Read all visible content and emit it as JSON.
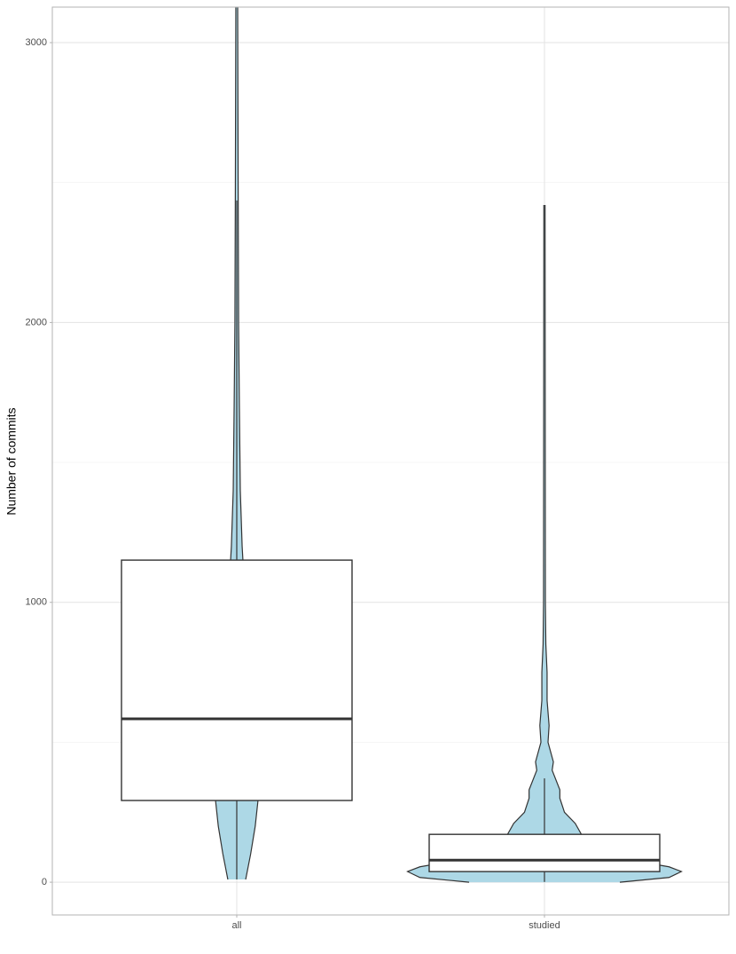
{
  "chart_data": {
    "type": "violin-box",
    "ylabel": "Number of commits",
    "categories": [
      "all",
      "studied"
    ],
    "ylim": [
      -117,
      3127
    ],
    "yticks": [
      0,
      1000,
      2000,
      3000
    ],
    "minor_yticks": [
      500,
      1500,
      2500
    ],
    "grid": true,
    "violin_color": "#add8e6",
    "box_color": "#ffffff",
    "violins": [
      {
        "y": [
          10,
          100,
          200,
          292,
          500,
          800,
          1151,
          1200,
          1400,
          1700,
          2000,
          2500,
          3127
        ],
        "density": [
          0.058,
          0.09,
          0.12,
          0.138,
          0.15,
          0.115,
          0.04,
          0.035,
          0.023,
          0.017,
          0.012,
          0.009,
          0.006
        ]
      },
      {
        "y": [
          0,
          17,
          38,
          55,
          80,
          120,
          171,
          210,
          250,
          300,
          330,
          400,
          430,
          500,
          560,
          650,
          750,
          850,
          1000,
          2420
        ],
        "density": [
          0.49,
          0.81,
          0.89,
          0.81,
          0.55,
          0.4,
          0.24,
          0.2,
          0.13,
          0.1,
          0.1,
          0.05,
          0.058,
          0.023,
          0.03,
          0.017,
          0.017,
          0.009,
          0.006,
          0.004
        ]
      }
    ],
    "boxes": [
      {
        "whisker_low": 10,
        "q1": 292,
        "median": 584,
        "q3": 1151,
        "whisker_high": 2436
      },
      {
        "whisker_low": 1,
        "q1": 38,
        "median": 79,
        "q3": 171,
        "whisker_high": 371
      }
    ]
  }
}
